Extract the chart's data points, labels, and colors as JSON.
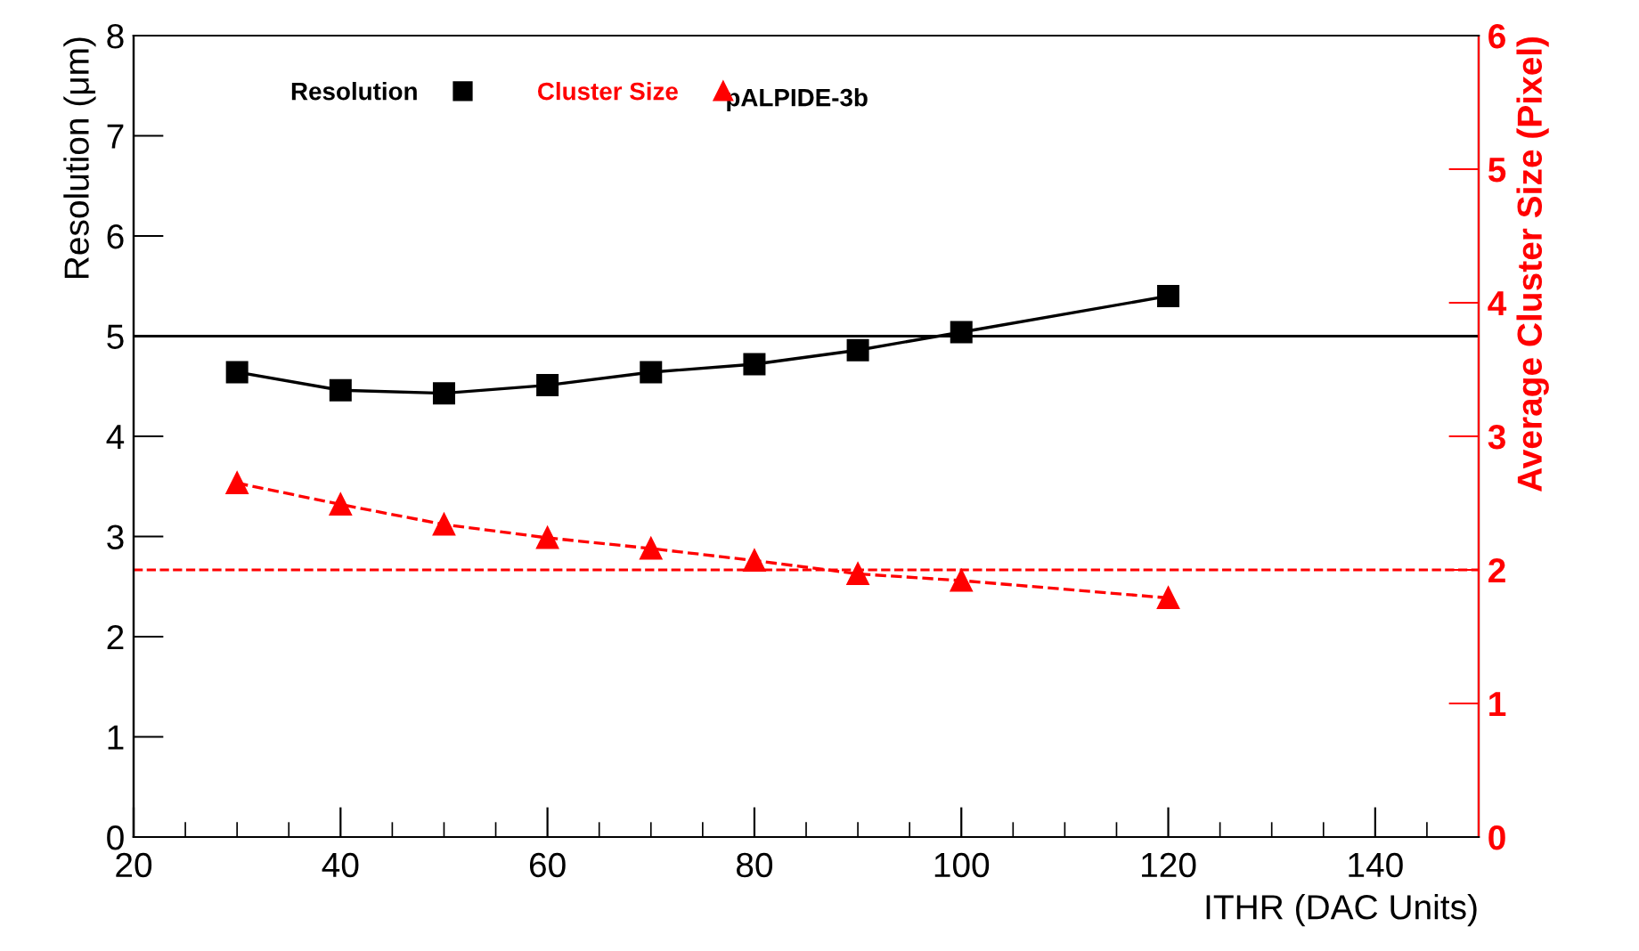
{
  "chart_data": {
    "type": "line",
    "xlabel": "ITHR (DAC Units)",
    "ylabel": "Resolution (μm)",
    "y2label": "Average Cluster Size (Pixel)",
    "x": [
      30,
      40,
      50,
      60,
      70,
      80,
      90,
      100,
      120
    ],
    "series": [
      {
        "name": "Resolution",
        "color": "#000000",
        "marker": "square",
        "line_style": "solid",
        "values": [
          4.64,
          4.46,
          4.43,
          4.51,
          4.64,
          4.72,
          4.86,
          5.04,
          5.4
        ]
      },
      {
        "name": "Cluster Size",
        "color": "#ff0000",
        "marker": "triangle",
        "line_style": "dashed",
        "axis": "y2",
        "values": [
          2.65,
          2.49,
          2.34,
          2.24,
          2.16,
          2.07,
          1.97,
          1.92,
          1.79
        ]
      }
    ],
    "annotations": [
      "pALPIDE-3b"
    ],
    "ref_lines": [
      {
        "axis": "y",
        "value": 5,
        "color": "#000000",
        "line_style": "solid"
      },
      {
        "axis": "y2",
        "value": 2,
        "color": "#ff0000",
        "line_style": "dashed"
      }
    ],
    "xlim": [
      20,
      150
    ],
    "xticks": [
      20,
      40,
      60,
      80,
      100,
      120,
      140
    ],
    "ylim": [
      0,
      8
    ],
    "yticks": [
      0,
      1,
      2,
      3,
      4,
      5,
      6,
      7,
      8
    ],
    "y2lim": [
      0,
      6
    ],
    "y2ticks": [
      0,
      1,
      2,
      3,
      4,
      5,
      6
    ],
    "legend": "top left",
    "grid": false
  }
}
